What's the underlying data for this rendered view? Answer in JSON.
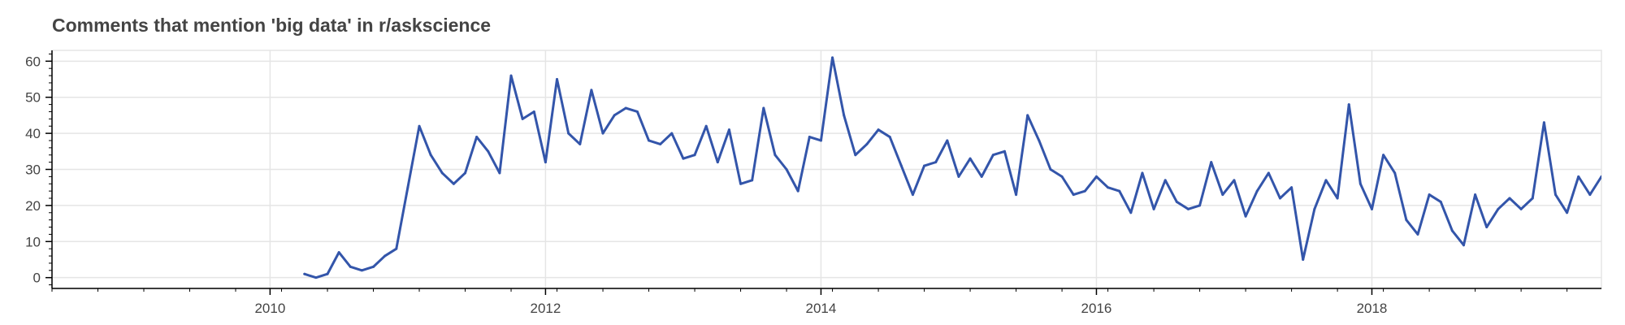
{
  "chart_data": {
    "type": "line",
    "title": "Comments that mention 'big data' in r/askscience",
    "xlabel": "",
    "ylabel": "",
    "x_start": "2010-04",
    "x_step": "month",
    "xlim": [
      "2008-06",
      "2019-09"
    ],
    "ylim": [
      -3,
      63
    ],
    "x_ticks": [
      "2010",
      "2012",
      "2014",
      "2016",
      "2018"
    ],
    "y_ticks": [
      0,
      10,
      20,
      30,
      40,
      50,
      60
    ],
    "grid": true,
    "legend": "none",
    "line_color": "#3355aa",
    "series": [
      {
        "values": [
          1,
          0,
          1,
          7,
          3,
          2,
          3,
          6,
          8,
          25,
          42,
          34,
          29,
          26,
          29,
          39,
          35,
          29,
          56,
          44,
          46,
          32,
          55,
          40,
          37,
          52,
          40,
          45,
          47,
          46,
          38,
          37,
          40,
          33,
          34,
          42,
          32,
          41,
          26,
          27,
          47,
          34,
          30,
          24,
          39,
          38,
          61,
          45,
          34,
          37,
          41,
          39,
          31,
          23,
          31,
          32,
          38,
          28,
          33,
          28,
          34,
          35,
          23,
          45,
          38,
          30,
          28,
          23,
          24,
          28,
          25,
          24,
          18,
          29,
          19,
          27,
          21,
          19,
          20,
          32,
          23,
          27,
          17,
          24,
          29,
          22,
          25,
          5,
          19,
          27,
          22,
          48,
          26,
          19,
          34,
          29,
          16,
          12,
          23,
          21,
          13,
          9,
          23,
          14,
          19,
          22,
          19,
          22,
          43,
          23,
          18,
          28,
          23,
          28
        ]
      }
    ]
  }
}
